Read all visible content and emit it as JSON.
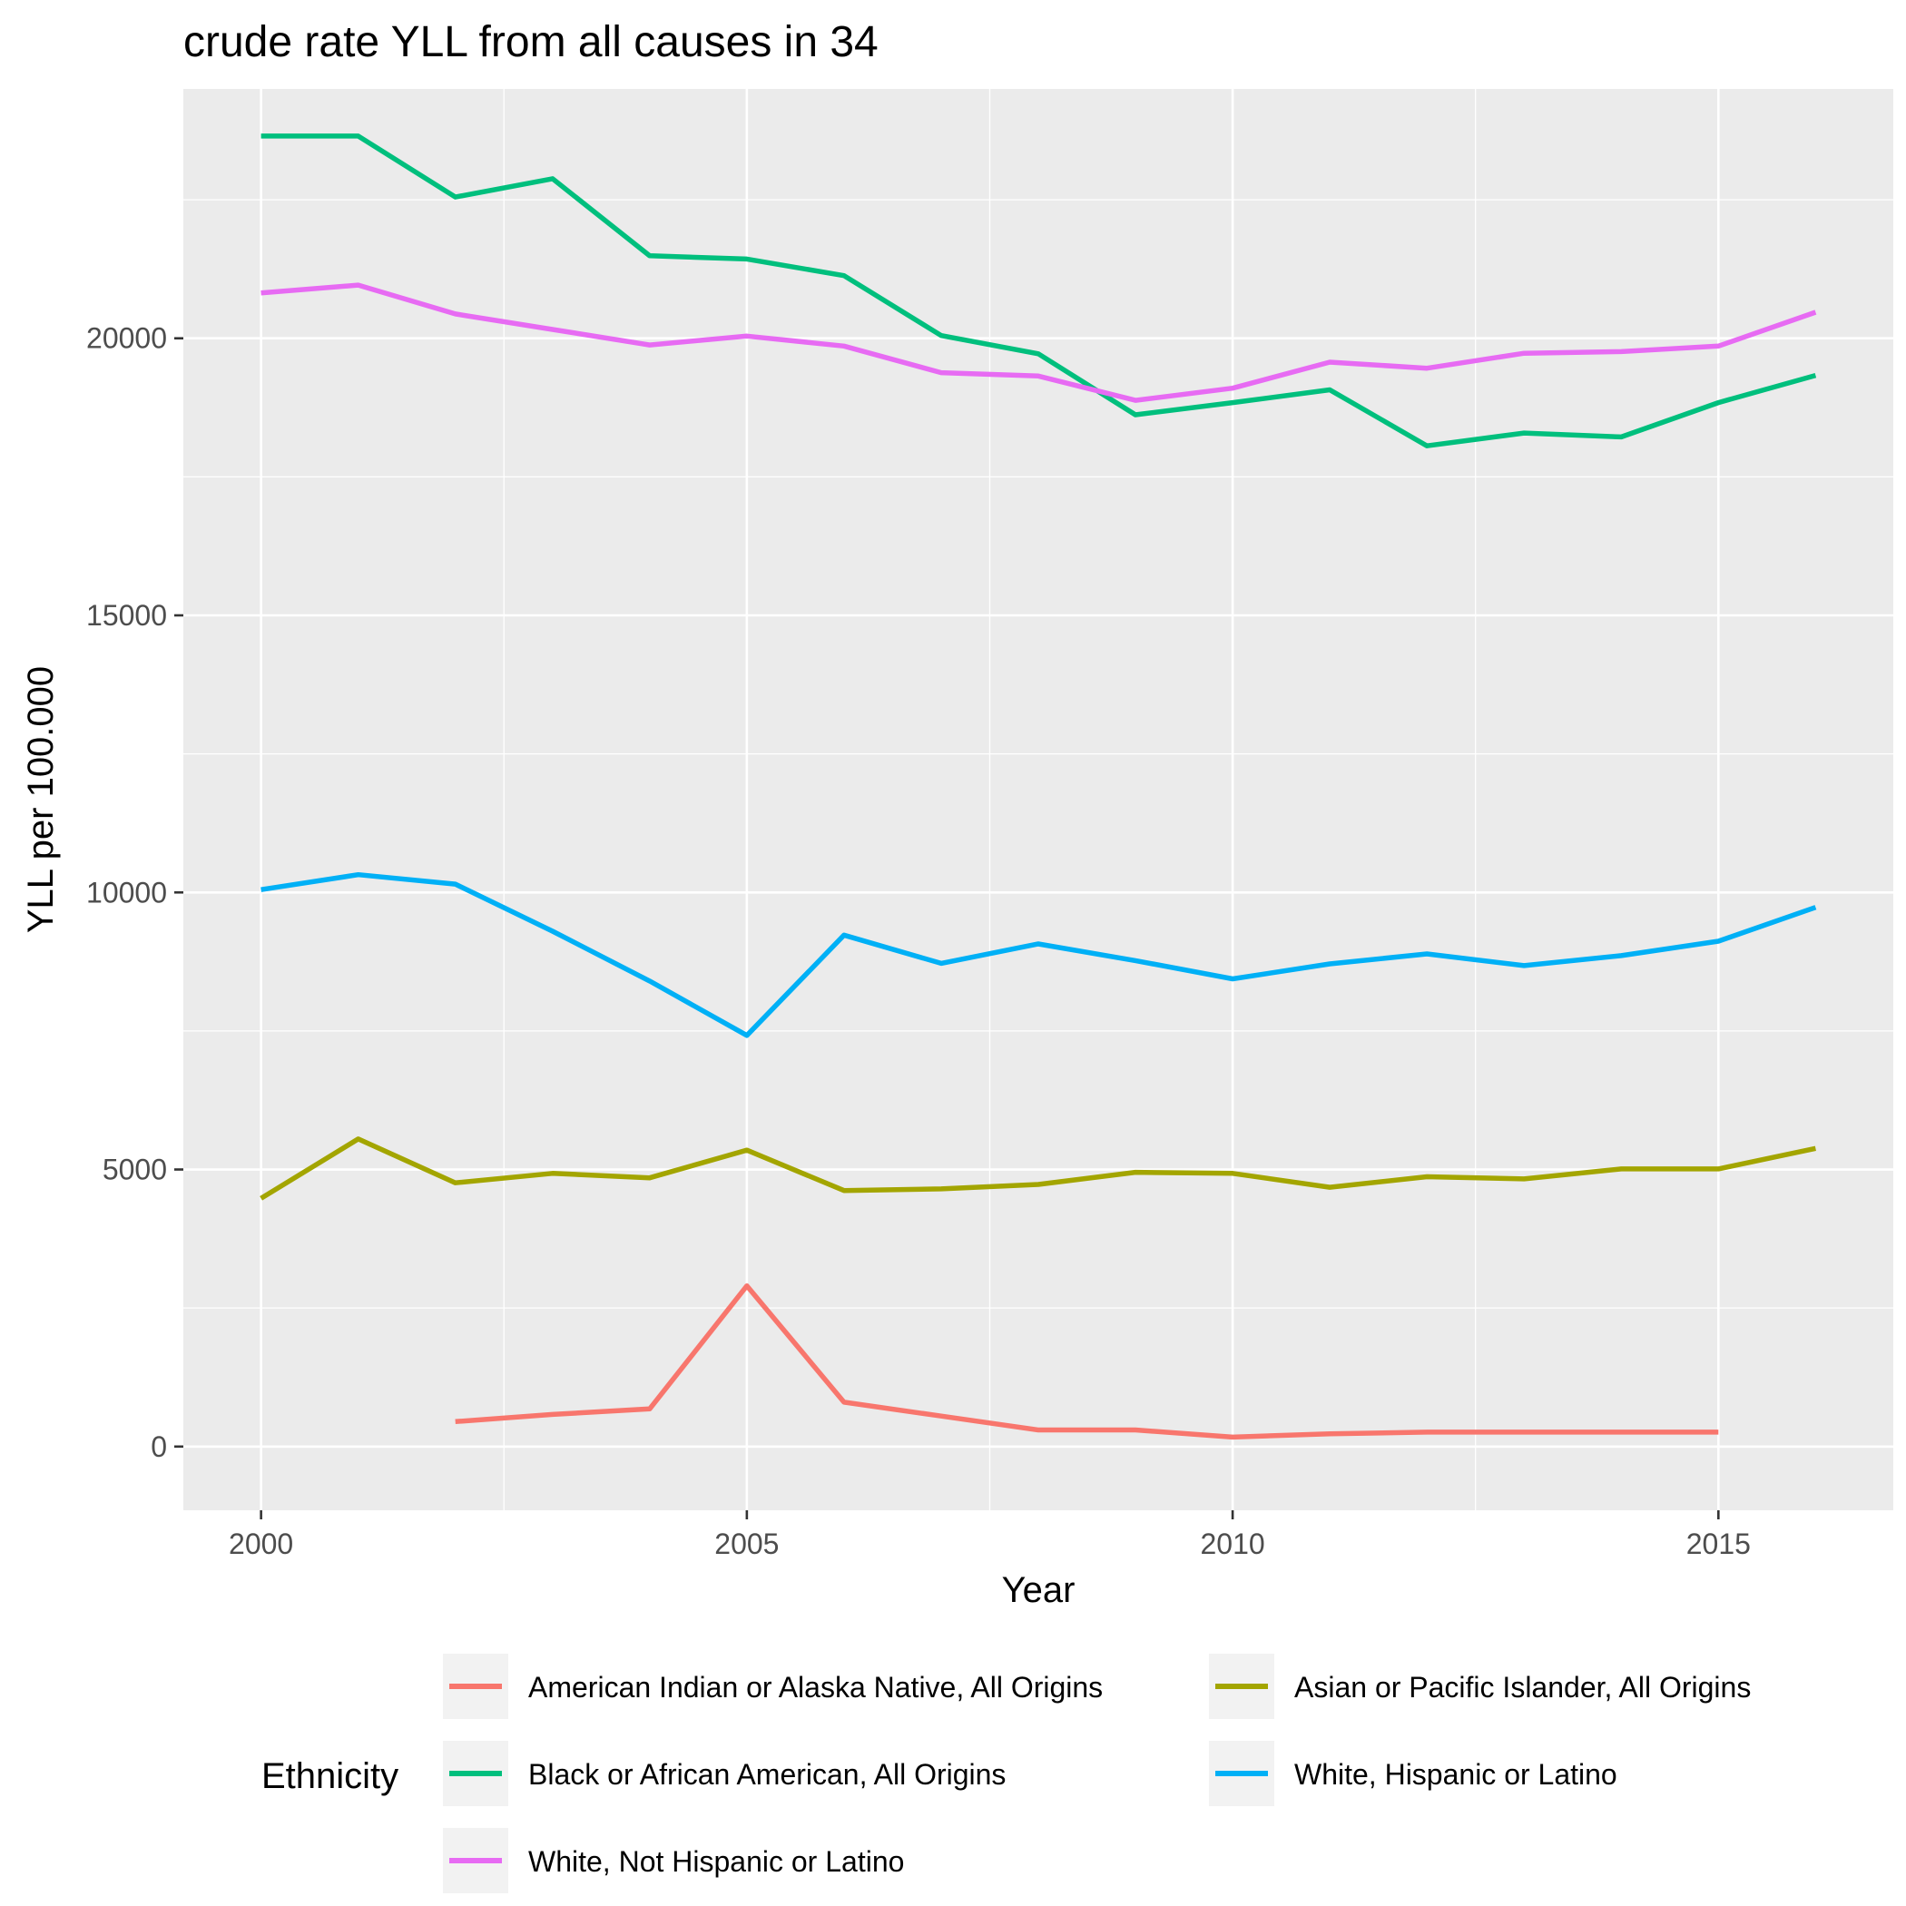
{
  "chart_data": {
    "type": "line",
    "title": "crude rate YLL from all causes in 34",
    "xlabel": "Year",
    "ylabel": "YLL per 100.000",
    "xlim": [
      1999.2,
      2016.8
    ],
    "ylim": [
      -1150,
      24500
    ],
    "x_ticks": [
      2000,
      2005,
      2010,
      2015
    ],
    "y_ticks": [
      0,
      5000,
      10000,
      15000,
      20000
    ],
    "x_tick_labels": [
      "2000",
      "2005",
      "2010",
      "2015"
    ],
    "y_tick_labels": [
      "0",
      "5000",
      "10000",
      "15000",
      "20000"
    ],
    "grid": true,
    "legend": {
      "title": "Ethnicity",
      "position": "bottom"
    },
    "series": [
      {
        "name": "American Indian or Alaska Native, All Origins",
        "color": "#F8766D",
        "x": [
          2002,
          2003,
          2004,
          2005,
          2006,
          2007,
          2008,
          2009,
          2010,
          2011,
          2012,
          2013,
          2014,
          2015
        ],
        "values": [
          450,
          580,
          680,
          2900,
          800,
          550,
          300,
          300,
          170,
          230,
          260,
          260,
          260,
          260
        ]
      },
      {
        "name": "Asian or Pacific Islander, All Origins",
        "color": "#A3A500",
        "x": [
          2000,
          2001,
          2002,
          2003,
          2004,
          2005,
          2006,
          2007,
          2008,
          2009,
          2010,
          2011,
          2012,
          2013,
          2014,
          2015,
          2016
        ],
        "values": [
          4480,
          5550,
          4760,
          4930,
          4850,
          5350,
          4620,
          4650,
          4730,
          4950,
          4930,
          4680,
          4870,
          4830,
          5010,
          5010,
          5380
        ]
      },
      {
        "name": "Black or African American, All Origins",
        "color": "#00BF7D",
        "x": [
          2000,
          2001,
          2002,
          2003,
          2004,
          2005,
          2006,
          2007,
          2008,
          2009,
          2010,
          2011,
          2012,
          2013,
          2014,
          2015,
          2016
        ],
        "values": [
          23650,
          23650,
          22550,
          22880,
          21490,
          21430,
          21130,
          20050,
          19720,
          18620,
          18840,
          19070,
          18060,
          18290,
          18220,
          18840,
          19330
        ]
      },
      {
        "name": "White, Hispanic or Latino",
        "color": "#00B0F6",
        "x": [
          2000,
          2001,
          2002,
          2003,
          2004,
          2005,
          2006,
          2007,
          2008,
          2009,
          2010,
          2011,
          2012,
          2013,
          2014,
          2015,
          2016
        ],
        "values": [
          10050,
          10320,
          10150,
          9300,
          8400,
          7420,
          9230,
          8720,
          9070,
          8770,
          8440,
          8710,
          8890,
          8680,
          8860,
          9120,
          9730
        ]
      },
      {
        "name": "White, Not Hispanic or Latino",
        "color": "#E76BF3",
        "x": [
          2000,
          2001,
          2002,
          2003,
          2004,
          2005,
          2006,
          2007,
          2008,
          2009,
          2010,
          2011,
          2012,
          2013,
          2014,
          2015,
          2016
        ],
        "values": [
          20820,
          20960,
          20440,
          20160,
          19880,
          20040,
          19860,
          19380,
          19320,
          18880,
          19100,
          19570,
          19460,
          19730,
          19760,
          19860,
          20470
        ]
      }
    ]
  }
}
